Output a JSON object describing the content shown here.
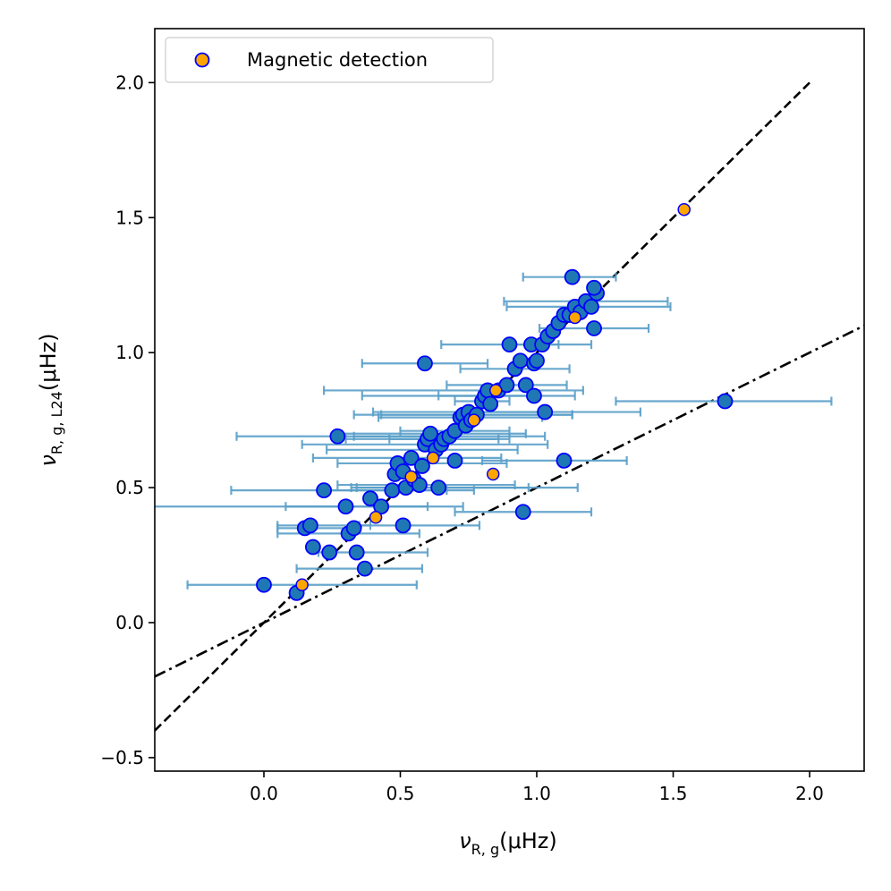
{
  "chart_data": {
    "type": "scatter",
    "xlabel_symbol": "ν",
    "xlabel_sub": "R, g",
    "xlabel_unit": "(μHz)",
    "ylabel_symbol": "ν",
    "ylabel_sub": "R, g, L24",
    "ylabel_unit": "(μHz)",
    "xlim": [
      -0.4,
      2.2
    ],
    "ylim": [
      -0.55,
      2.2
    ],
    "xticks": [
      0.0,
      0.5,
      1.0,
      1.5,
      2.0
    ],
    "xtick_labels": [
      "0.0",
      "0.5",
      "1.0",
      "1.5",
      "2.0"
    ],
    "yticks": [
      -0.5,
      0.0,
      0.5,
      1.0,
      1.5,
      2.0
    ],
    "ytick_labels": [
      "−0.5",
      "0.0",
      "0.5",
      "1.0",
      "1.5",
      "2.0"
    ],
    "legend": {
      "label": "Magnetic detection",
      "position": "top-left"
    },
    "colors": {
      "points_fill": "#1f77b4",
      "points_edge": "#0000ff",
      "magnetic_fill": "#ffa500",
      "errorbar": "#5a9fc9",
      "lines": "#000000"
    },
    "reference_lines": [
      {
        "name": "1:1 line",
        "style": "dashed",
        "slope": 1.0,
        "intercept": 0.0,
        "x_range": [
          -0.4,
          2.0
        ]
      },
      {
        "name": "1:2 line",
        "style": "dashdot",
        "slope": 0.5,
        "intercept": 0.0,
        "x_range": [
          -0.4,
          2.2
        ]
      }
    ],
    "series": [
      {
        "name": "Stars",
        "points": [
          {
            "x": 0.0,
            "y": 0.14,
            "xerr": [
              0.28,
              0.56
            ]
          },
          {
            "x": 0.12,
            "y": 0.11,
            "xerr": null
          },
          {
            "x": 0.15,
            "y": 0.35,
            "xerr": [
              0.1,
              0.2
            ]
          },
          {
            "x": 0.17,
            "y": 0.36,
            "xerr": [
              0.12,
              0.22
            ]
          },
          {
            "x": 0.18,
            "y": 0.28,
            "xerr": null
          },
          {
            "x": 0.22,
            "y": 0.49,
            "xerr": [
              0.34,
              0.45
            ]
          },
          {
            "x": 0.24,
            "y": 0.26,
            "xerr": null
          },
          {
            "x": 0.27,
            "y": 0.69,
            "xerr": [
              0.37,
              0.36
            ]
          },
          {
            "x": 0.3,
            "y": 0.43,
            "xerr": [
              0.72,
              0.3
            ]
          },
          {
            "x": 0.31,
            "y": 0.33,
            "xerr": [
              0.26,
              0.26
            ]
          },
          {
            "x": 0.33,
            "y": 0.35,
            "xerr": null
          },
          {
            "x": 0.34,
            "y": 0.26,
            "xerr": [
              0.14,
              0.26
            ]
          },
          {
            "x": 0.37,
            "y": 0.2,
            "xerr": [
              0.25,
              0.21
            ]
          },
          {
            "x": 0.39,
            "y": 0.46,
            "xerr": null
          },
          {
            "x": 0.43,
            "y": 0.43,
            "xerr": [
              0.35,
              0.3
            ]
          },
          {
            "x": 0.47,
            "y": 0.49,
            "xerr": [
              0.25,
              0.3
            ]
          },
          {
            "x": 0.48,
            "y": 0.55,
            "xerr": null
          },
          {
            "x": 0.49,
            "y": 0.59,
            "xerr": [
              0.22,
              0.4
            ]
          },
          {
            "x": 0.51,
            "y": 0.36,
            "xerr": [
              0.16,
              0.28
            ]
          },
          {
            "x": 0.51,
            "y": 0.56,
            "xerr": null
          },
          {
            "x": 0.52,
            "y": 0.5,
            "xerr": [
              0.2,
              0.63
            ]
          },
          {
            "x": 0.54,
            "y": 0.61,
            "xerr": [
              0.36,
              0.33
            ]
          },
          {
            "x": 0.55,
            "y": 0.53,
            "xerr": null
          },
          {
            "x": 0.57,
            "y": 0.51,
            "xerr": [
              0.3,
              0.35
            ]
          },
          {
            "x": 0.58,
            "y": 0.58,
            "xerr": null
          },
          {
            "x": 0.59,
            "y": 0.96,
            "xerr": [
              0.23,
              0.23
            ]
          },
          {
            "x": 0.59,
            "y": 0.66,
            "xerr": [
              0.45,
              0.45
            ]
          },
          {
            "x": 0.6,
            "y": 0.68,
            "xerr": [
              0.3,
              0.3
            ]
          },
          {
            "x": 0.61,
            "y": 0.7,
            "xerr": [
              0.35,
              0.35
            ]
          },
          {
            "x": 0.63,
            "y": 0.64,
            "xerr": [
              0.4,
              0.3
            ]
          },
          {
            "x": 0.64,
            "y": 0.5,
            "xerr": [
              0.3,
              0.33
            ]
          },
          {
            "x": 0.65,
            "y": 0.66,
            "xerr": null
          },
          {
            "x": 0.66,
            "y": 0.68,
            "xerr": [
              0.2,
              0.2
            ]
          },
          {
            "x": 0.68,
            "y": 0.69,
            "xerr": [
              0.35,
              0.35
            ]
          },
          {
            "x": 0.7,
            "y": 0.6,
            "xerr": null
          },
          {
            "x": 0.7,
            "y": 0.71,
            "xerr": [
              0.2,
              0.2
            ]
          },
          {
            "x": 0.72,
            "y": 0.76,
            "xerr": [
              0.3,
              0.3
            ]
          },
          {
            "x": 0.73,
            "y": 0.77,
            "xerr": [
              0.4,
              0.4
            ]
          },
          {
            "x": 0.74,
            "y": 0.73,
            "xerr": null
          },
          {
            "x": 0.75,
            "y": 0.78,
            "xerr": [
              0.35,
              0.3
            ]
          },
          {
            "x": 0.76,
            "y": 0.75,
            "xerr": null
          },
          {
            "x": 0.78,
            "y": 0.77,
            "xerr": [
              0.35,
              0.35
            ]
          },
          {
            "x": 0.8,
            "y": 0.82,
            "xerr": [
              0.1,
              0.1
            ]
          },
          {
            "x": 0.81,
            "y": 0.84,
            "xerr": [
              0.45,
              0.2
            ]
          },
          {
            "x": 0.82,
            "y": 0.86,
            "xerr": [
              0.6,
              0.35
            ]
          },
          {
            "x": 0.83,
            "y": 0.81,
            "xerr": null
          },
          {
            "x": 0.86,
            "y": 0.86,
            "xerr": null
          },
          {
            "x": 0.89,
            "y": 0.88,
            "xerr": [
              0.22,
              0.22
            ]
          },
          {
            "x": 0.9,
            "y": 1.03,
            "xerr": [
              0.25,
              0.3
            ]
          },
          {
            "x": 0.92,
            "y": 0.94,
            "xerr": [
              0.2,
              0.2
            ]
          },
          {
            "x": 0.94,
            "y": 0.97,
            "xerr": null
          },
          {
            "x": 0.95,
            "y": 0.41,
            "xerr": [
              0.25,
              0.25
            ]
          },
          {
            "x": 0.96,
            "y": 0.88,
            "xerr": null
          },
          {
            "x": 0.98,
            "y": 1.03,
            "xerr": [
              0.1,
              0.1
            ]
          },
          {
            "x": 0.99,
            "y": 0.84,
            "xerr": [
              0.35,
              0.15
            ]
          },
          {
            "x": 0.99,
            "y": 0.96,
            "xerr": null
          },
          {
            "x": 1.0,
            "y": 0.97,
            "xerr": null
          },
          {
            "x": 1.02,
            "y": 1.03,
            "xerr": null
          },
          {
            "x": 1.03,
            "y": 0.78,
            "xerr": [
              0.25,
              0.35
            ]
          },
          {
            "x": 1.04,
            "y": 1.06,
            "xerr": null
          },
          {
            "x": 1.06,
            "y": 1.08,
            "xerr": null
          },
          {
            "x": 1.08,
            "y": 1.11,
            "xerr": null
          },
          {
            "x": 1.1,
            "y": 0.6,
            "xerr": [
              0.3,
              0.23
            ]
          },
          {
            "x": 1.1,
            "y": 1.14,
            "xerr": null
          },
          {
            "x": 1.12,
            "y": 1.14,
            "xerr": null
          },
          {
            "x": 1.13,
            "y": 1.28,
            "xerr": [
              0.18,
              0.16
            ]
          },
          {
            "x": 1.14,
            "y": 1.17,
            "xerr": [
              0.25,
              0.35
            ]
          },
          {
            "x": 1.16,
            "y": 1.15,
            "xerr": null
          },
          {
            "x": 1.18,
            "y": 1.19,
            "xerr": [
              0.3,
              0.3
            ]
          },
          {
            "x": 1.2,
            "y": 1.17,
            "xerr": null
          },
          {
            "x": 1.21,
            "y": 1.09,
            "xerr": [
              0.2,
              0.2
            ]
          },
          {
            "x": 1.22,
            "y": 1.22,
            "xerr": null
          },
          {
            "x": 1.21,
            "y": 1.24,
            "xerr": null
          },
          {
            "x": 1.69,
            "y": 0.82,
            "xerr": [
              0.4,
              0.39
            ]
          }
        ]
      },
      {
        "name": "Magnetic detection",
        "points": [
          {
            "x": 0.14,
            "y": 0.14
          },
          {
            "x": 0.41,
            "y": 0.39
          },
          {
            "x": 0.54,
            "y": 0.54
          },
          {
            "x": 0.62,
            "y": 0.61
          },
          {
            "x": 0.77,
            "y": 0.75
          },
          {
            "x": 0.84,
            "y": 0.55
          },
          {
            "x": 0.85,
            "y": 0.86
          },
          {
            "x": 1.14,
            "y": 1.13
          },
          {
            "x": 1.54,
            "y": 1.53
          }
        ]
      }
    ]
  }
}
